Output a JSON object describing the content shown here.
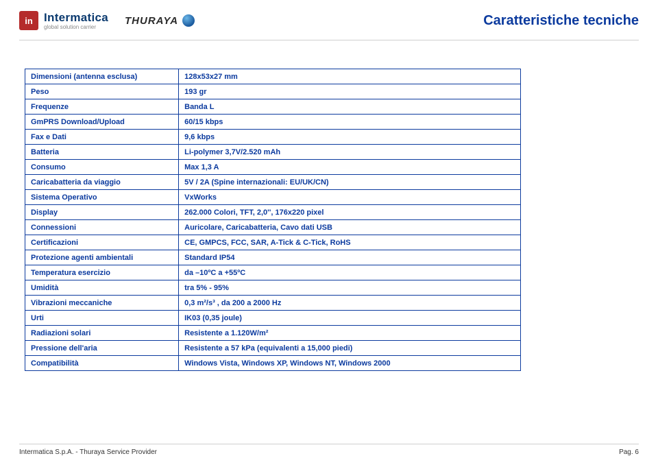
{
  "header": {
    "intermatica_name": "Intermatica",
    "intermatica_tag": "global solution carrier",
    "intermatica_badge": "in",
    "thuraya": "THURAYA",
    "page_title": "Caratteristiche tecniche"
  },
  "table": {
    "rows": [
      {
        "label": "Dimensioni (antenna esclusa)",
        "value": "128x53x27 mm"
      },
      {
        "label": "Peso",
        "value": "193 gr"
      },
      {
        "label": "Frequenze",
        "value": "Banda L"
      },
      {
        "label": "GmPRS Download/Upload",
        "value": "60/15 kbps"
      },
      {
        "label": "Fax e Dati",
        "value": "9,6 kbps"
      },
      {
        "label": "Batteria",
        "value": "Li-polymer 3,7V/2.520 mAh"
      },
      {
        "label": "Consumo",
        "value": "Max 1,3 A"
      },
      {
        "label": "Caricabatteria da viaggio",
        "value": "5V / 2A (Spine internazionali: EU/UK/CN)"
      },
      {
        "label": "Sistema Operativo",
        "value": "VxWorks"
      },
      {
        "label": "Display",
        "value": "262.000 Colori, TFT, 2,0'', 176x220 pixel"
      },
      {
        "label": "Connessioni",
        "value": "Auricolare, Caricabatteria, Cavo dati USB"
      },
      {
        "label": "Certificazioni",
        "value": "CE, GMPCS, FCC, SAR, A-Tick & C-Tick, RoHS"
      },
      {
        "label": "Protezione agenti ambientali",
        "value": "Standard IP54"
      },
      {
        "label": "Temperatura esercizio",
        "value": "da –10ºC a +55ºC"
      },
      {
        "label": "Umidità",
        "value": "tra 5% - 95%"
      },
      {
        "label": "Vibrazioni meccaniche",
        "value": "0,3 m²/s³ , da 200 a 2000 Hz"
      },
      {
        "label": "Urti",
        "value": "IK03 (0,35 joule)"
      },
      {
        "label": "Radiazioni solari",
        "value": "Resistente a 1.120W/m²"
      },
      {
        "label": "Pressione dell'aria",
        "value": "Resistente a 57 kPa (equivalenti a 15,000 piedi)"
      },
      {
        "label": "Compatibilità",
        "value": "Windows Vista, Windows XP, Windows NT, Windows 2000"
      }
    ]
  },
  "footer": {
    "left": "Intermatica S.p.A. - Thuraya Service Provider",
    "right": "Pag. 6"
  },
  "colors": {
    "primary": "#0b3a9e",
    "badge": "#b52b2b"
  }
}
